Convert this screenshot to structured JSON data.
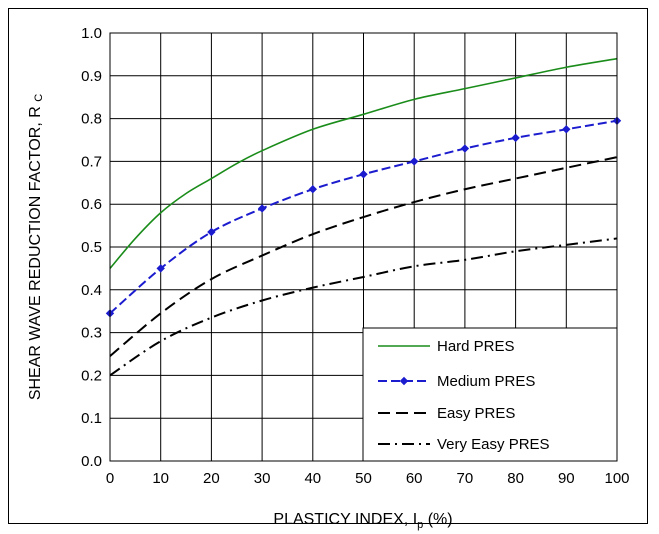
{
  "chart_data": {
    "type": "line",
    "xlabel": "PLASTICY  INDEX, I",
    "xlabel_sub": "p",
    "xlabel_unit": "  (%)",
    "ylabel": "SHEAR WAVE REDUCTION FACTOR, R",
    "ylabel_sub": "C",
    "xlim": [
      0,
      100
    ],
    "ylim": [
      0.0,
      1.0
    ],
    "x_ticks": [
      "0",
      "10",
      "20",
      "30",
      "40",
      "50",
      "60",
      "70",
      "80",
      "90",
      "100"
    ],
    "y_ticks": [
      "0.0",
      "0.1",
      "0.2",
      "0.3",
      "0.4",
      "0.5",
      "0.6",
      "0.7",
      "0.8",
      "0.9",
      "1.0"
    ],
    "grid": true,
    "legend_position": "bottom-right",
    "series": [
      {
        "name": "Hard PRES",
        "color": "#1a8c1a",
        "style": "solid",
        "x": [
          0,
          5,
          10,
          15,
          20,
          25,
          30,
          40,
          50,
          60,
          70,
          80,
          90,
          100
        ],
        "y": [
          0.45,
          0.52,
          0.58,
          0.625,
          0.66,
          0.695,
          0.725,
          0.775,
          0.81,
          0.845,
          0.87,
          0.895,
          0.92,
          0.94
        ]
      },
      {
        "name": "Medium PRES",
        "color": "#1c1ccf",
        "style": "dashed-marker",
        "x": [
          0,
          10,
          20,
          30,
          40,
          50,
          60,
          70,
          80,
          90,
          100
        ],
        "y": [
          0.345,
          0.45,
          0.535,
          0.59,
          0.635,
          0.67,
          0.7,
          0.73,
          0.755,
          0.775,
          0.795
        ]
      },
      {
        "name": "Easy PRES",
        "color": "#000000",
        "style": "dashed",
        "x": [
          0,
          10,
          20,
          30,
          40,
          50,
          60,
          70,
          80,
          90,
          100
        ],
        "y": [
          0.245,
          0.345,
          0.425,
          0.48,
          0.53,
          0.57,
          0.605,
          0.635,
          0.66,
          0.685,
          0.71
        ]
      },
      {
        "name": "Very Easy PRES",
        "color": "#000000",
        "style": "dashdot",
        "x": [
          0,
          10,
          20,
          30,
          40,
          50,
          60,
          70,
          80,
          90,
          100
        ],
        "y": [
          0.2,
          0.28,
          0.335,
          0.375,
          0.405,
          0.43,
          0.455,
          0.47,
          0.49,
          0.505,
          0.52
        ]
      }
    ]
  }
}
